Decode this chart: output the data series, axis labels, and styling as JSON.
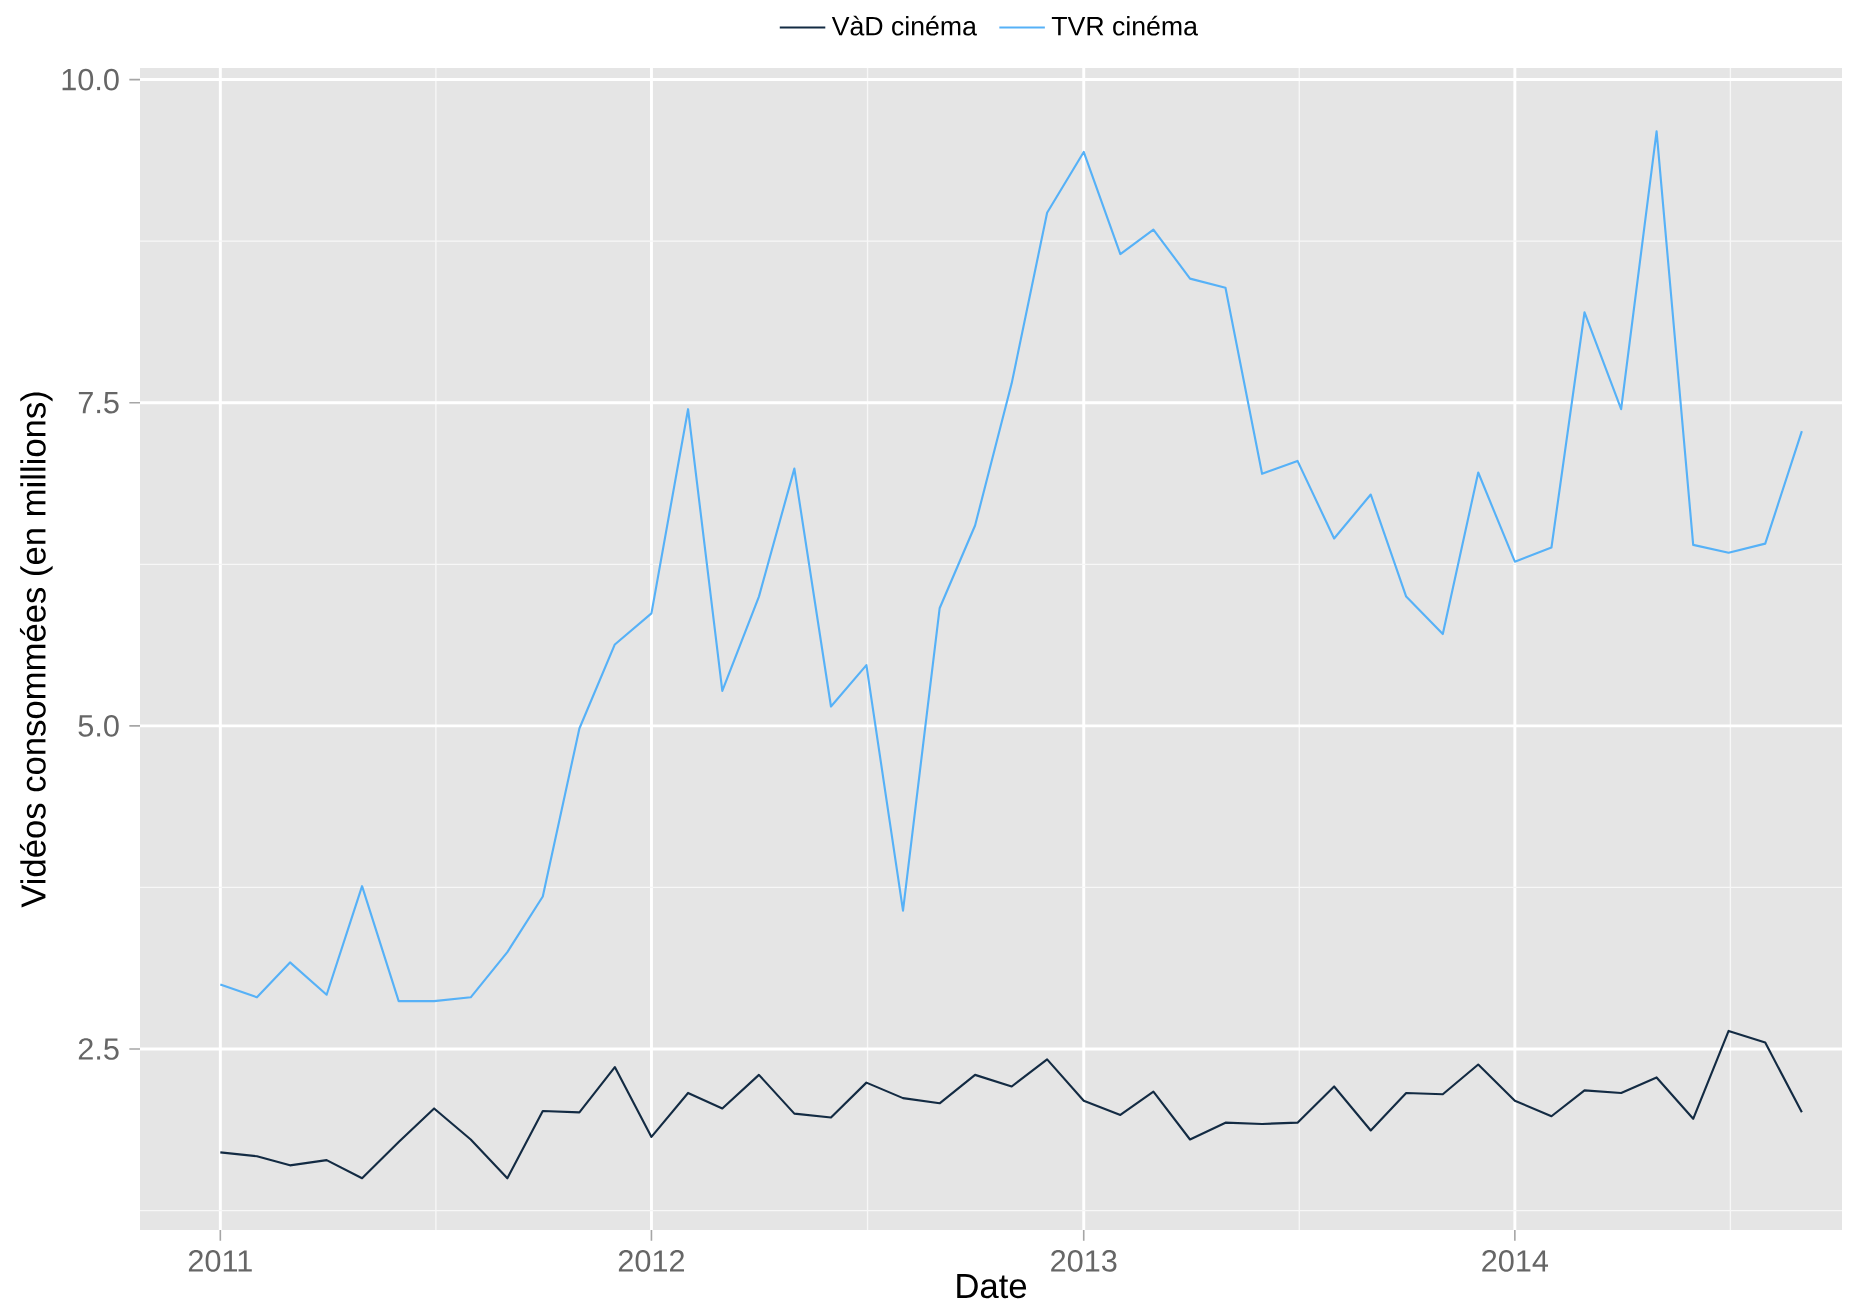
{
  "chart_data": {
    "type": "line",
    "xlabel": "Date",
    "ylabel": "Vidéos consommées (en millions)",
    "x": [
      "2011-01",
      "2011-02",
      "2011-03",
      "2011-04",
      "2011-05",
      "2011-06",
      "2011-07",
      "2011-08",
      "2011-09",
      "2011-10",
      "2011-11",
      "2011-12",
      "2012-01",
      "2012-02",
      "2012-03",
      "2012-04",
      "2012-05",
      "2012-06",
      "2012-07",
      "2012-08",
      "2012-09",
      "2012-10",
      "2012-11",
      "2012-12",
      "2013-01",
      "2013-02",
      "2013-03",
      "2013-04",
      "2013-05",
      "2013-06",
      "2013-07",
      "2013-08",
      "2013-09",
      "2013-10",
      "2013-11",
      "2013-12",
      "2014-01",
      "2014-02",
      "2014-03",
      "2014-04",
      "2014-05",
      "2014-06",
      "2014-07",
      "2014-08",
      "2014-09"
    ],
    "series": [
      {
        "name": "VàD cinéma",
        "color": "#132b43",
        "values": [
          1.7,
          1.67,
          1.6,
          1.64,
          1.5,
          1.78,
          2.04,
          1.8,
          1.5,
          2.02,
          2.01,
          2.36,
          1.82,
          2.16,
          2.04,
          2.3,
          2.0,
          1.97,
          2.24,
          2.12,
          2.08,
          2.3,
          2.21,
          2.42,
          2.1,
          1.99,
          2.17,
          1.8,
          1.93,
          1.92,
          1.93,
          2.21,
          1.87,
          2.16,
          2.15,
          2.38,
          2.1,
          1.98,
          2.18,
          2.16,
          2.28,
          1.96,
          2.64,
          2.55,
          2.01
        ]
      },
      {
        "name": "TVR cinéma",
        "color": "#56b1f7",
        "values": [
          3.0,
          2.9,
          3.17,
          2.92,
          3.76,
          2.87,
          2.87,
          2.9,
          3.25,
          3.68,
          4.98,
          5.63,
          5.87,
          7.45,
          5.27,
          6.0,
          6.99,
          5.15,
          5.47,
          3.57,
          5.91,
          6.55,
          7.65,
          8.97,
          9.44,
          8.65,
          8.84,
          8.46,
          8.39,
          6.95,
          7.05,
          6.45,
          6.79,
          6.0,
          5.71,
          6.96,
          6.27,
          6.38,
          8.2,
          7.45,
          9.6,
          6.4,
          6.34,
          6.41,
          7.28
        ]
      }
    ],
    "xlim": [
      "2010-10-25",
      "2014-10-05"
    ],
    "xticks": [
      "2011",
      "2012",
      "2013",
      "2014"
    ],
    "ylim": [
      1.1,
      10.09
    ],
    "yticks": [
      {
        "value": 2.5,
        "label": "2.5"
      },
      {
        "value": 5,
        "label": "5.0"
      },
      {
        "value": 7.5,
        "label": "7.5"
      },
      {
        "value": 10,
        "label": "10.0"
      }
    ],
    "grid": true,
    "legend": "top",
    "line_style": "solid",
    "marker": "none"
  }
}
